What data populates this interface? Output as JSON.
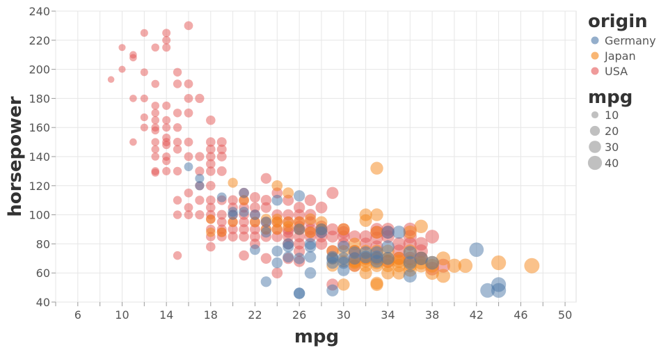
{
  "chart_data": {
    "type": "scatter",
    "title": "",
    "xlabel": "mpg",
    "ylabel": "horsepower",
    "xlim": [
      4,
      51
    ],
    "ylim": [
      40,
      240
    ],
    "x_ticks": [
      6,
      10,
      14,
      18,
      22,
      26,
      30,
      34,
      38,
      42,
      46,
      50
    ],
    "y_ticks": [
      40,
      60,
      80,
      100,
      120,
      140,
      160,
      180,
      200,
      220,
      240
    ],
    "grid": true,
    "legend_placement": "right",
    "color_legend": {
      "title": "origin",
      "entries": [
        {
          "name": "Germany",
          "color": "#4c78a8"
        },
        {
          "name": "Japan",
          "color": "#f58518"
        },
        {
          "name": "USA",
          "color": "#e45756"
        }
      ]
    },
    "size_legend": {
      "title": "mpg",
      "values": [
        10,
        20,
        30,
        40
      ],
      "color": "#8c8c8c"
    },
    "series": [
      {
        "name": "USA",
        "color": "#e45756",
        "points": [
          [
            9,
            193
          ],
          [
            10,
            215
          ],
          [
            10,
            200
          ],
          [
            11,
            210
          ],
          [
            11,
            208
          ],
          [
            11,
            180
          ],
          [
            11,
            150
          ],
          [
            12,
            225
          ],
          [
            12,
            198
          ],
          [
            12,
            180
          ],
          [
            12,
            167
          ],
          [
            12,
            160
          ],
          [
            13,
            215
          ],
          [
            13,
            190
          ],
          [
            13,
            175
          ],
          [
            13,
            170
          ],
          [
            13,
            165
          ],
          [
            13,
            160
          ],
          [
            13,
            158
          ],
          [
            13,
            150
          ],
          [
            13,
            145
          ],
          [
            13,
            140
          ],
          [
            13,
            130
          ],
          [
            13,
            129
          ],
          [
            14,
            225
          ],
          [
            14,
            220
          ],
          [
            14,
            215
          ],
          [
            14,
            175
          ],
          [
            14,
            165
          ],
          [
            14,
            160
          ],
          [
            14,
            153
          ],
          [
            14,
            150
          ],
          [
            14,
            148
          ],
          [
            14,
            140
          ],
          [
            14,
            137
          ],
          [
            14,
            130
          ],
          [
            15,
            198
          ],
          [
            15,
            190
          ],
          [
            15,
            170
          ],
          [
            15,
            160
          ],
          [
            15,
            150
          ],
          [
            15,
            145
          ],
          [
            15,
            130
          ],
          [
            15,
            110
          ],
          [
            15,
            100
          ],
          [
            15,
            72
          ],
          [
            16,
            230
          ],
          [
            16,
            190
          ],
          [
            16,
            180
          ],
          [
            16,
            170
          ],
          [
            16,
            150
          ],
          [
            16,
            140
          ],
          [
            16,
            115
          ],
          [
            16,
            105
          ],
          [
            16,
            100
          ],
          [
            17,
            180
          ],
          [
            17,
            140
          ],
          [
            17,
            130
          ],
          [
            17,
            120
          ],
          [
            17,
            110
          ],
          [
            17,
            100
          ],
          [
            18,
            165
          ],
          [
            18,
            150
          ],
          [
            18,
            145
          ],
          [
            18,
            140
          ],
          [
            18,
            135
          ],
          [
            18,
            130
          ],
          [
            18,
            120
          ],
          [
            18,
            110
          ],
          [
            18,
            105
          ],
          [
            18,
            100
          ],
          [
            18,
            97
          ],
          [
            18,
            90
          ],
          [
            18,
            85
          ],
          [
            18,
            78
          ],
          [
            19,
            150
          ],
          [
            19,
            145
          ],
          [
            19,
            140
          ],
          [
            19,
            130
          ],
          [
            19,
            110
          ],
          [
            19,
            100
          ],
          [
            19,
            95
          ],
          [
            19,
            90
          ],
          [
            19,
            88
          ],
          [
            19,
            85
          ],
          [
            20,
            110
          ],
          [
            20,
            105
          ],
          [
            20,
            100
          ],
          [
            20,
            95
          ],
          [
            20,
            90
          ],
          [
            20,
            85
          ],
          [
            21,
            115
          ],
          [
            21,
            110
          ],
          [
            21,
            105
          ],
          [
            21,
            100
          ],
          [
            21,
            95
          ],
          [
            21,
            90
          ],
          [
            21,
            85
          ],
          [
            21,
            72
          ],
          [
            22,
            112
          ],
          [
            22,
            105
          ],
          [
            22,
            100
          ],
          [
            22,
            95
          ],
          [
            22,
            90
          ],
          [
            22,
            85
          ],
          [
            22,
            80
          ],
          [
            23,
            125
          ],
          [
            23,
            110
          ],
          [
            23,
            105
          ],
          [
            23,
            95
          ],
          [
            23,
            90
          ],
          [
            23,
            85
          ],
          [
            23,
            70
          ],
          [
            24,
            115
          ],
          [
            24,
            100
          ],
          [
            24,
            95
          ],
          [
            24,
            90
          ],
          [
            24,
            85
          ],
          [
            24,
            60
          ],
          [
            25,
            110
          ],
          [
            25,
            100
          ],
          [
            25,
            95
          ],
          [
            25,
            90
          ],
          [
            25,
            88
          ],
          [
            25,
            85
          ],
          [
            25,
            80
          ],
          [
            25,
            70
          ],
          [
            26,
            105
          ],
          [
            26,
            100
          ],
          [
            26,
            95
          ],
          [
            26,
            92
          ],
          [
            26,
            90
          ],
          [
            26,
            85
          ],
          [
            26,
            80
          ],
          [
            26,
            75
          ],
          [
            26,
            68
          ],
          [
            27,
            110
          ],
          [
            27,
            100
          ],
          [
            27,
            95
          ],
          [
            27,
            90
          ],
          [
            27,
            88
          ],
          [
            27,
            85
          ],
          [
            28,
            105
          ],
          [
            28,
            92
          ],
          [
            28,
            90
          ],
          [
            28,
            88
          ],
          [
            28,
            85
          ],
          [
            28,
            80
          ],
          [
            29,
            115
          ],
          [
            29,
            90
          ],
          [
            29,
            85
          ],
          [
            29,
            75
          ],
          [
            29,
            52
          ],
          [
            30,
            90
          ],
          [
            30,
            88
          ],
          [
            30,
            85
          ],
          [
            30,
            80
          ],
          [
            31,
            85
          ],
          [
            31,
            75
          ],
          [
            31,
            70
          ],
          [
            31,
            65
          ],
          [
            32,
            85
          ],
          [
            32,
            80
          ],
          [
            32,
            70
          ],
          [
            33,
            90
          ],
          [
            33,
            88
          ],
          [
            33,
            84
          ],
          [
            33,
            78
          ],
          [
            33,
            70
          ],
          [
            34,
            90
          ],
          [
            34,
            88
          ],
          [
            34,
            85
          ],
          [
            34,
            68
          ],
          [
            35,
            80
          ],
          [
            35,
            75
          ],
          [
            35,
            70
          ],
          [
            36,
            90
          ],
          [
            36,
            85
          ],
          [
            36,
            80
          ],
          [
            36,
            70
          ],
          [
            37,
            80
          ],
          [
            37,
            75
          ],
          [
            37,
            70
          ],
          [
            38,
            85
          ],
          [
            38,
            63
          ],
          [
            39,
            65
          ]
        ]
      },
      {
        "name": "Japan",
        "color": "#f58518",
        "points": [
          [
            18,
            97
          ],
          [
            18,
            88
          ],
          [
            19,
            88
          ],
          [
            20,
            122
          ],
          [
            20,
            95
          ],
          [
            21,
            110
          ],
          [
            22,
            95
          ],
          [
            23,
            97
          ],
          [
            23,
            90
          ],
          [
            24,
            120
          ],
          [
            24,
            97
          ],
          [
            24,
            95
          ],
          [
            24,
            90
          ],
          [
            25,
            115
          ],
          [
            25,
            95
          ],
          [
            25,
            92
          ],
          [
            26,
            95
          ],
          [
            26,
            90
          ],
          [
            27,
            97
          ],
          [
            27,
            88
          ],
          [
            28,
            95
          ],
          [
            28,
            90
          ],
          [
            29,
            75
          ],
          [
            29,
            70
          ],
          [
            29,
            65
          ],
          [
            30,
            90
          ],
          [
            30,
            75
          ],
          [
            30,
            68
          ],
          [
            30,
            52
          ],
          [
            31,
            80
          ],
          [
            31,
            75
          ],
          [
            31,
            68
          ],
          [
            31,
            67
          ],
          [
            31,
            65
          ],
          [
            32,
            100
          ],
          [
            32,
            96
          ],
          [
            32,
            75
          ],
          [
            32,
            70
          ],
          [
            32,
            68
          ],
          [
            32,
            65
          ],
          [
            32,
            60
          ],
          [
            33,
            132
          ],
          [
            33,
            100
          ],
          [
            33,
            88
          ],
          [
            33,
            75
          ],
          [
            33,
            70
          ],
          [
            33,
            67
          ],
          [
            33,
            65
          ],
          [
            33,
            53
          ],
          [
            33,
            52
          ],
          [
            34,
            75
          ],
          [
            34,
            70
          ],
          [
            34,
            68
          ],
          [
            34,
            65
          ],
          [
            34,
            60
          ],
          [
            35,
            70
          ],
          [
            35,
            68
          ],
          [
            35,
            65
          ],
          [
            35,
            60
          ],
          [
            36,
            88
          ],
          [
            36,
            75
          ],
          [
            36,
            68
          ],
          [
            36,
            65
          ],
          [
            36,
            62
          ],
          [
            37,
            92
          ],
          [
            37,
            70
          ],
          [
            37,
            67
          ],
          [
            37,
            65
          ],
          [
            38,
            67
          ],
          [
            38,
            65
          ],
          [
            38,
            60
          ],
          [
            39,
            70
          ],
          [
            39,
            58
          ],
          [
            40,
            65
          ],
          [
            41,
            65
          ],
          [
            44,
            67
          ],
          [
            47,
            65
          ]
        ]
      },
      {
        "name": "Germany",
        "color": "#4c78a8",
        "points": [
          [
            16,
            133
          ],
          [
            17,
            120
          ],
          [
            17,
            125
          ],
          [
            19,
            112
          ],
          [
            20,
            102
          ],
          [
            20,
            100
          ],
          [
            21,
            115
          ],
          [
            21,
            102
          ],
          [
            22,
            76
          ],
          [
            22,
            100
          ],
          [
            23,
            54
          ],
          [
            23,
            88
          ],
          [
            23,
            95
          ],
          [
            24,
            110
          ],
          [
            24,
            75
          ],
          [
            24,
            67
          ],
          [
            25,
            71
          ],
          [
            25,
            80
          ],
          [
            25,
            78
          ],
          [
            26,
            113
          ],
          [
            26,
            90
          ],
          [
            26,
            70
          ],
          [
            26,
            46
          ],
          [
            26,
            46
          ],
          [
            27,
            78
          ],
          [
            27,
            60
          ],
          [
            27,
            71
          ],
          [
            27,
            80
          ],
          [
            28,
            88
          ],
          [
            28,
            90
          ],
          [
            29,
            71
          ],
          [
            29,
            70
          ],
          [
            29,
            67
          ],
          [
            29,
            48
          ],
          [
            30,
            62
          ],
          [
            30,
            78
          ],
          [
            30,
            67
          ],
          [
            30,
            70
          ],
          [
            31,
            74
          ],
          [
            31,
            70
          ],
          [
            32,
            74
          ],
          [
            32,
            71
          ],
          [
            33,
            71
          ],
          [
            33,
            74
          ],
          [
            33,
            68
          ],
          [
            34,
            78
          ],
          [
            34,
            70
          ],
          [
            34,
            88
          ],
          [
            35,
            88
          ],
          [
            36,
            74
          ],
          [
            36,
            67
          ],
          [
            36,
            58
          ],
          [
            37,
            70
          ],
          [
            38,
            67
          ],
          [
            42,
            76
          ],
          [
            43,
            48
          ],
          [
            44,
            52
          ],
          [
            44,
            48
          ]
        ]
      }
    ]
  }
}
